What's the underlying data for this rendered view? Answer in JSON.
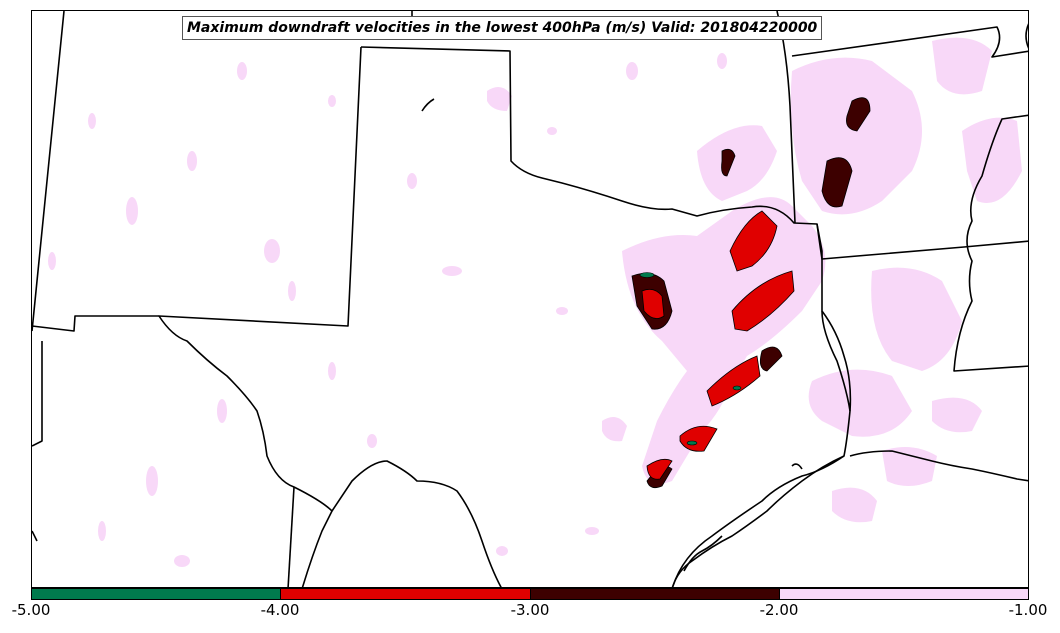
{
  "title": "Maximum downdraft velocities in the lowest 400hPa (m/s) Valid: 201804220000",
  "colorbar": {
    "ticks": [
      "-5.00",
      "-4.00",
      "-3.00",
      "-2.00",
      "-1.00"
    ],
    "segments": [
      {
        "range": [
          -5.0,
          -4.0
        ],
        "color": "#007a4d"
      },
      {
        "range": [
          -4.0,
          -3.0
        ],
        "color": "#e00000"
      },
      {
        "range": [
          -3.0,
          -2.0
        ],
        "color": "#3d0000"
      },
      {
        "range": [
          -2.0,
          -1.0
        ],
        "color": "#f8d8f8"
      }
    ]
  },
  "map": {
    "background": "#ffffff",
    "border_color": "#000000"
  }
}
